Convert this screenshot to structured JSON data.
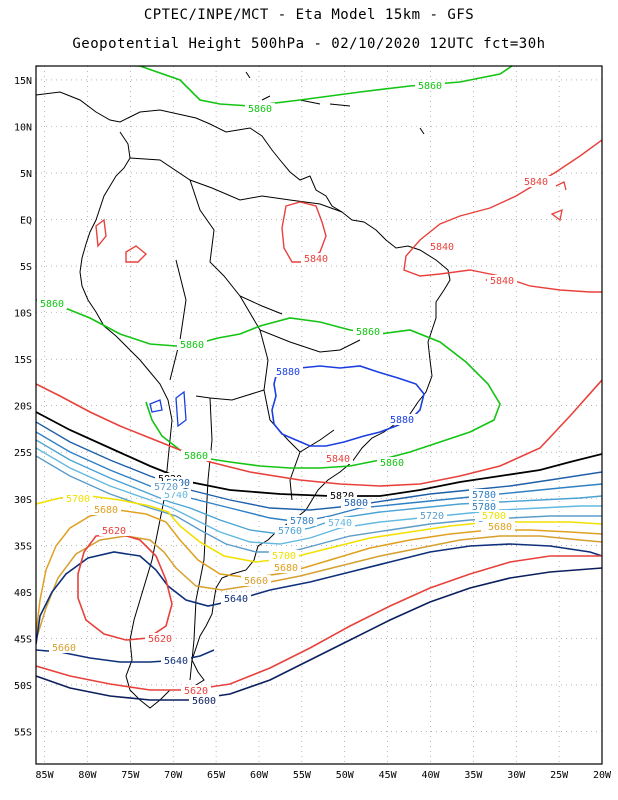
{
  "header": {
    "line1": "CPTEC/INPE/MCT -  Eta Model 15km - GFS",
    "line2": "Geopotential Height 500hPa - 02/10/2020 12UTC fct=30h"
  },
  "colors": {
    "c5880": "#1a3fe0",
    "c5860": "#13c413",
    "c5840": "#e8413c",
    "c5820": "#000000",
    "c5800": "#1e5fa8",
    "c5780": "#2f7fc4",
    "c5760": "#4aa3d4",
    "c5740": "#62b8e0",
    "c5720": "#5c9cc8",
    "c5700": "#f2e000",
    "c5680": "#e0a020",
    "c5660": "#d6a030",
    "c5640": "#0e2f7a",
    "c5620": "#e8413c",
    "c5600": "#0a1f5c",
    "coast": "#000000",
    "grid": "#888888"
  },
  "map": {
    "lat_ticks": [
      "15N",
      "10N",
      "5N",
      "EQ",
      "5S",
      "10S",
      "15S",
      "20S",
      "25S",
      "30S",
      "35S",
      "40S",
      "45S",
      "50S",
      "55S"
    ],
    "lon_ticks": [
      "85W",
      "80W",
      "75W",
      "70W",
      "65W",
      "60W",
      "55W",
      "50W",
      "45W",
      "40W",
      "35W",
      "30W",
      "25W",
      "20W"
    ]
  },
  "contour_labels": [
    {
      "text": "5860",
      "color": "c5860"
    },
    {
      "text": "5860",
      "color": "c5860"
    },
    {
      "text": "5840",
      "color": "c5840"
    },
    {
      "text": "5840",
      "color": "c5840"
    },
    {
      "text": "5840",
      "color": "c5840"
    },
    {
      "text": "5840",
      "color": "c5840"
    },
    {
      "text": "5860",
      "color": "c5860"
    },
    {
      "text": "5860",
      "color": "c5860"
    },
    {
      "text": "5860",
      "color": "c5860"
    },
    {
      "text": "5880",
      "color": "c5880"
    },
    {
      "text": "5880",
      "color": "c5880"
    },
    {
      "text": "5860",
      "color": "c5860"
    },
    {
      "text": "5860",
      "color": "c5860"
    },
    {
      "text": "5840",
      "color": "c5840"
    },
    {
      "text": "5820",
      "color": "c5820"
    },
    {
      "text": "5820",
      "color": "c5820"
    },
    {
      "text": "5800",
      "color": "c5800"
    },
    {
      "text": "5780",
      "color": "c5780"
    },
    {
      "text": "5760",
      "color": "c5760"
    },
    {
      "text": "5740",
      "color": "c5740"
    },
    {
      "text": "5720",
      "color": "c5720"
    },
    {
      "text": "5700",
      "color": "c5700"
    },
    {
      "text": "5680",
      "color": "c5680"
    },
    {
      "text": "5620",
      "color": "c5620"
    },
    {
      "text": "5780",
      "color": "c5780"
    },
    {
      "text": "5760",
      "color": "c5760"
    },
    {
      "text": "5740",
      "color": "c5740"
    },
    {
      "text": "5800",
      "color": "c5800"
    },
    {
      "text": "5720",
      "color": "c5720"
    },
    {
      "text": "5780",
      "color": "c5780"
    },
    {
      "text": "5760",
      "color": "c5760"
    },
    {
      "text": "5700",
      "color": "c5700"
    },
    {
      "text": "5660",
      "color": "c5660"
    },
    {
      "text": "5680",
      "color": "c5680"
    },
    {
      "text": "5700",
      "color": "c5700"
    },
    {
      "text": "5660",
      "color": "c5660"
    },
    {
      "text": "5640",
      "color": "c5640"
    },
    {
      "text": "5680",
      "color": "c5680"
    },
    {
      "text": "5660",
      "color": "c5660"
    },
    {
      "text": "5620",
      "color": "c5620"
    },
    {
      "text": "5640",
      "color": "c5640"
    },
    {
      "text": "5620",
      "color": "c5620"
    },
    {
      "text": "5600",
      "color": "c5600"
    }
  ]
}
